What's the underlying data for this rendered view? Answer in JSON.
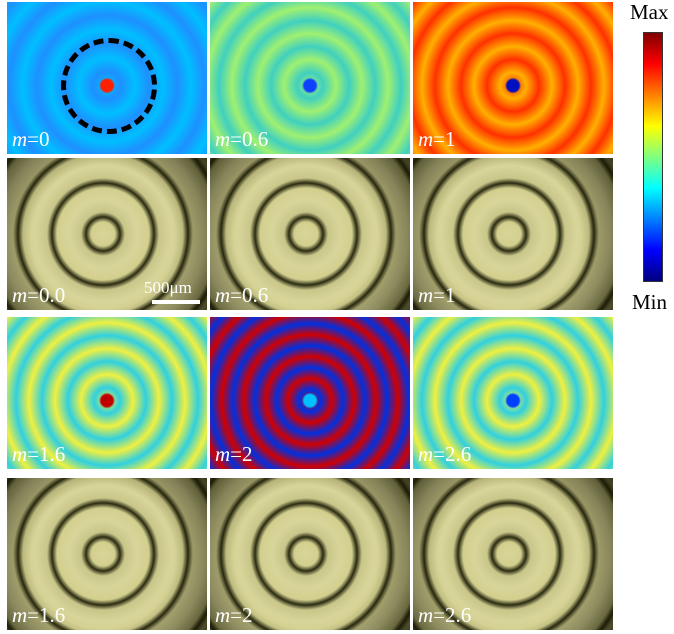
{
  "panels": [
    {
      "symbol": "m",
      "value": "=0"
    },
    {
      "symbol": "m",
      "value": "=0.6"
    },
    {
      "symbol": "m",
      "value": "=1"
    },
    {
      "symbol": "m",
      "value": "=0.0"
    },
    {
      "symbol": "m",
      "value": "=0.6"
    },
    {
      "symbol": "m",
      "value": "=1"
    },
    {
      "symbol": "m",
      "value": "=1.6"
    },
    {
      "symbol": "m",
      "value": "=2"
    },
    {
      "symbol": "m",
      "value": "=2.6"
    },
    {
      "symbol": "m",
      "value": "=1.6"
    },
    {
      "symbol": "m",
      "value": "=2"
    },
    {
      "symbol": "m",
      "value": "=2.6"
    }
  ],
  "scale_bar": "500μm",
  "colorbar": {
    "max_label": "Max",
    "min_label": "Min"
  }
}
